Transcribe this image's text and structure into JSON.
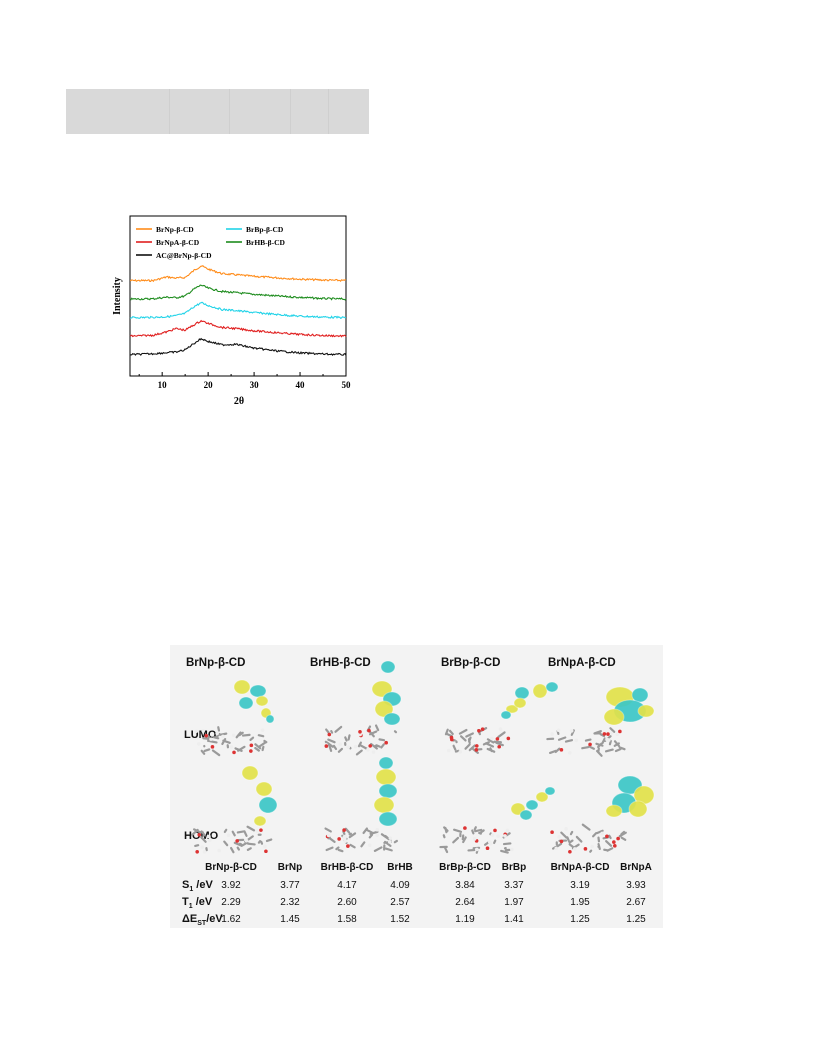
{
  "colors": {
    "series_1": "#ff8c1a",
    "series_2": "#22d3e8",
    "series_3": "#e02020",
    "series_4": "#1e8c1e",
    "series_5": "#111111",
    "orbital_yellow": "#e2e24a",
    "orbital_cyan": "#3cc7c7"
  },
  "chart_data": {
    "type": "line",
    "xlabel": "2θ",
    "ylabel": "Intensity",
    "xlim": [
      3,
      50
    ],
    "xticks": [
      "10",
      "20",
      "30",
      "40",
      "50"
    ],
    "grid": false,
    "legend_position": "top-left",
    "series": [
      {
        "name": "BrNp-β-CD",
        "color": "#ff8c1a",
        "offset": 4,
        "x": [
          3,
          8,
          11,
          13,
          15,
          17,
          18.5,
          20,
          23,
          26,
          30,
          35,
          40,
          45,
          50
        ],
        "y": [
          0.05,
          0.05,
          0.18,
          0.14,
          0.16,
          0.42,
          0.58,
          0.46,
          0.3,
          0.26,
          0.2,
          0.15,
          0.1,
          0.07,
          0.05
        ]
      },
      {
        "name": "BrHB-β-CD",
        "color": "#1e8c1e",
        "offset": 3,
        "x": [
          3,
          8,
          11,
          13,
          15,
          17,
          18.5,
          20,
          23,
          26,
          30,
          35,
          40,
          45,
          50
        ],
        "y": [
          0.05,
          0.06,
          0.12,
          0.1,
          0.16,
          0.42,
          0.55,
          0.44,
          0.32,
          0.28,
          0.22,
          0.16,
          0.11,
          0.07,
          0.05
        ]
      },
      {
        "name": "BrBp-β-CD",
        "color": "#22d3e8",
        "offset": 2,
        "x": [
          3,
          8,
          11,
          13,
          15,
          17,
          18.5,
          20,
          23,
          26,
          30,
          35,
          40,
          45,
          50
        ],
        "y": [
          0.05,
          0.06,
          0.08,
          0.12,
          0.2,
          0.45,
          0.58,
          0.48,
          0.34,
          0.3,
          0.23,
          0.16,
          0.1,
          0.07,
          0.05
        ]
      },
      {
        "name": "BrNpA-β-CD",
        "color": "#e02020",
        "offset": 1,
        "x": [
          3,
          8,
          11,
          13,
          15,
          17,
          18.5,
          20,
          23,
          26,
          30,
          35,
          40,
          45,
          50
        ],
        "y": [
          0.05,
          0.08,
          0.2,
          0.32,
          0.26,
          0.46,
          0.6,
          0.5,
          0.36,
          0.32,
          0.24,
          0.17,
          0.11,
          0.07,
          0.05
        ]
      },
      {
        "name": "AC@BrNp-β-CD",
        "color": "#111111",
        "offset": 0,
        "x": [
          3,
          8,
          11,
          13,
          15,
          17,
          18.5,
          20,
          23,
          26,
          30,
          35,
          40,
          45,
          50
        ],
        "y": [
          0.05,
          0.08,
          0.12,
          0.14,
          0.22,
          0.46,
          0.62,
          0.52,
          0.4,
          0.42,
          0.28,
          0.18,
          0.11,
          0.07,
          0.05
        ]
      }
    ]
  },
  "dft": {
    "compound_titles": [
      "BrNp-β-CD",
      "BrHB-β-CD",
      "BrBp-β-CD",
      "BrNpA-β-CD"
    ],
    "row_labels": {
      "lumo": "LUMO",
      "homo": "HOMO"
    },
    "table": {
      "columns": [
        "BrNp-β-CD",
        "BrNp",
        "BrHB-β-CD",
        "BrHB",
        "BrBp-β-CD",
        "BrBp",
        "BrNpA-β-CD",
        "BrNpA"
      ],
      "rows": [
        {
          "label_main": "S",
          "label_sub": "1",
          "label_unit": " /eV",
          "values": [
            "3.92",
            "3.77",
            "4.17",
            "4.09",
            "3.84",
            "3.37",
            "3.19",
            "3.93"
          ]
        },
        {
          "label_main": "T",
          "label_sub": "1",
          "label_unit": " /eV",
          "values": [
            "2.29",
            "2.32",
            "2.60",
            "2.57",
            "2.64",
            "1.97",
            "1.95",
            "2.67"
          ]
        },
        {
          "label_main": "ΔE",
          "label_sub": "ST",
          "label_unit": "/eV",
          "values": [
            "1.62",
            "1.45",
            "1.58",
            "1.52",
            "1.19",
            "1.41",
            "1.25",
            "1.25"
          ]
        }
      ]
    }
  }
}
